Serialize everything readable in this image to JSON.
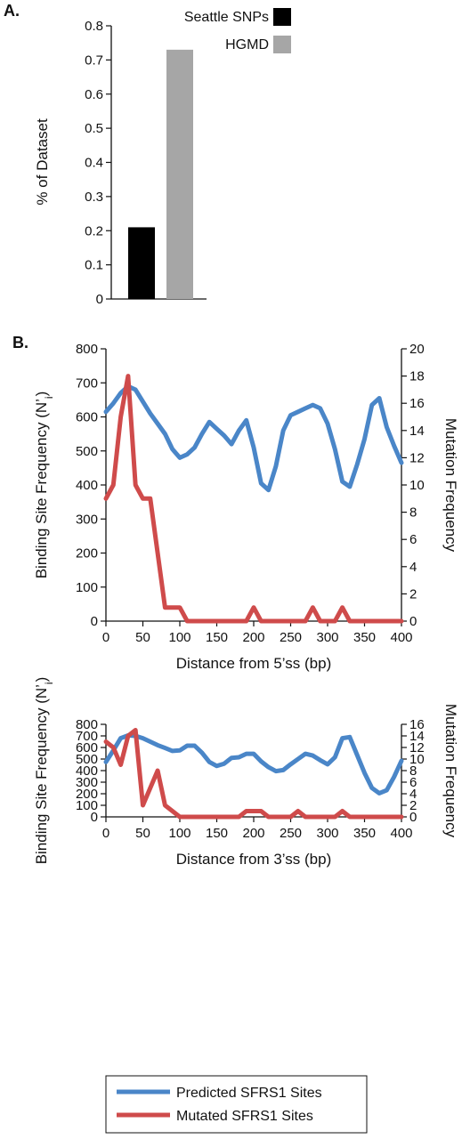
{
  "panel_a_label": "A.",
  "panel_b_label": "B.",
  "chart_data": [
    {
      "type": "bar",
      "categories": [
        "Seattle SNPs",
        "HGMD"
      ],
      "values": [
        0.21,
        0.73
      ],
      "colors": [
        "#000000",
        "#a6a6a6"
      ],
      "legend": [
        "Seattle SNPs",
        "HGMD"
      ],
      "legend_position": "top",
      "ylabel": "% of Dataset",
      "yticks": [
        "0",
        "0.1",
        "0.2",
        "0.3",
        "0.4",
        "0.5",
        "0.6",
        "0.7",
        "0.8"
      ],
      "ylim": [
        0,
        0.8
      ],
      "grid": false
    },
    {
      "type": "line",
      "xlabel": "Distance from 5’ss (bp)",
      "ylabel": "Binding Site Frequency (N’i)",
      "ylabel_main": "Binding Site Frequency (N’",
      "ylabel_sub": "i",
      "ylabel_close": ")",
      "y2label": "Mutation Frequency",
      "xticks": [
        "0",
        "50",
        "100",
        "150",
        "200",
        "250",
        "300",
        "350",
        "400"
      ],
      "yticks": [
        "0",
        "100",
        "200",
        "300",
        "400",
        "500",
        "600",
        "700",
        "800"
      ],
      "y2ticks": [
        "0",
        "2",
        "4",
        "6",
        "8",
        "10",
        "12",
        "14",
        "16",
        "18",
        "20"
      ],
      "xlim": [
        0,
        400
      ],
      "ylim": [
        0,
        800
      ],
      "y2lim": [
        0,
        20
      ],
      "grid": false,
      "series": [
        {
          "name": "Predicted SFRS1 Sites",
          "axis": "left",
          "color": "#4a86c8",
          "x": [
            0,
            10,
            20,
            30,
            40,
            50,
            60,
            70,
            80,
            90,
            100,
            110,
            120,
            130,
            140,
            150,
            160,
            170,
            180,
            190,
            200,
            210,
            220,
            230,
            240,
            250,
            260,
            270,
            280,
            290,
            300,
            310,
            320,
            330,
            340,
            350,
            360,
            370,
            380,
            390,
            400
          ],
          "y": [
            615,
            640,
            670,
            690,
            680,
            645,
            610,
            580,
            550,
            505,
            480,
            490,
            510,
            550,
            585,
            565,
            545,
            520,
            560,
            590,
            510,
            405,
            385,
            455,
            560,
            605,
            615,
            625,
            635,
            625,
            580,
            505,
            410,
            395,
            460,
            535,
            635,
            655,
            570,
            515,
            465
          ]
        },
        {
          "name": "Mutated SFRS1 Sites",
          "axis": "right",
          "color": "#cf4b4b",
          "x": [
            0,
            10,
            20,
            30,
            40,
            50,
            60,
            70,
            80,
            90,
            100,
            110,
            120,
            130,
            140,
            150,
            160,
            170,
            180,
            190,
            200,
            210,
            220,
            230,
            240,
            250,
            260,
            270,
            280,
            290,
            300,
            310,
            320,
            330,
            340,
            350,
            360,
            370,
            380,
            390,
            400
          ],
          "y": [
            9,
            10,
            15,
            18,
            10,
            9,
            9,
            5,
            1,
            1,
            1,
            0,
            0,
            0,
            0,
            0,
            0,
            0,
            0,
            0,
            1,
            0,
            0,
            0,
            0,
            0,
            0,
            0,
            1,
            0,
            0,
            0,
            1,
            0,
            0,
            0,
            0,
            0,
            0,
            0,
            0
          ]
        }
      ]
    },
    {
      "type": "line",
      "xlabel": "Distance from 3’ss (bp)",
      "ylabel": "Binding Site Frequency (N’i)",
      "ylabel_main": "Binding Site Frequency (N’",
      "ylabel_sub": "i",
      "ylabel_close": ")",
      "y2label": "Mutation Frequency",
      "xticks": [
        "0",
        "50",
        "100",
        "150",
        "200",
        "250",
        "300",
        "350",
        "400"
      ],
      "yticks": [
        "0",
        "100",
        "200",
        "300",
        "400",
        "500",
        "600",
        "700",
        "800"
      ],
      "y2ticks": [
        "0",
        "2",
        "4",
        "6",
        "8",
        "10",
        "12",
        "14",
        "16"
      ],
      "xlim": [
        0,
        400
      ],
      "ylim": [
        0,
        800
      ],
      "y2lim": [
        0,
        16
      ],
      "grid": false,
      "series": [
        {
          "name": "Predicted SFRS1 Sites",
          "axis": "left",
          "color": "#4a86c8",
          "x": [
            0,
            10,
            20,
            30,
            40,
            50,
            60,
            70,
            80,
            90,
            100,
            110,
            120,
            130,
            140,
            150,
            160,
            170,
            180,
            190,
            200,
            210,
            220,
            230,
            240,
            250,
            260,
            270,
            280,
            290,
            300,
            310,
            320,
            330,
            340,
            350,
            360,
            370,
            380,
            390,
            400
          ],
          "y": [
            475,
            575,
            680,
            705,
            700,
            680,
            650,
            620,
            595,
            570,
            575,
            615,
            615,
            555,
            475,
            440,
            460,
            510,
            515,
            545,
            545,
            480,
            430,
            395,
            405,
            455,
            500,
            545,
            530,
            490,
            455,
            515,
            680,
            690,
            535,
            380,
            250,
            205,
            230,
            345,
            485
          ]
        },
        {
          "name": "Mutated SFRS1 Sites",
          "axis": "right",
          "color": "#cf4b4b",
          "x": [
            0,
            10,
            20,
            30,
            40,
            50,
            60,
            70,
            80,
            90,
            100,
            110,
            120,
            130,
            140,
            150,
            160,
            170,
            180,
            190,
            200,
            210,
            220,
            230,
            240,
            250,
            260,
            270,
            280,
            290,
            300,
            310,
            320,
            330,
            340,
            350,
            360,
            370,
            380,
            390,
            400
          ],
          "y": [
            13,
            12,
            9,
            14,
            15,
            2,
            5,
            8,
            2,
            1,
            0,
            0,
            0,
            0,
            0,
            0,
            0,
            0,
            0,
            1,
            1,
            1,
            0,
            0,
            0,
            0,
            1,
            0,
            0,
            0,
            0,
            0,
            1,
            0,
            0,
            0,
            0,
            0,
            0,
            0,
            0
          ]
        }
      ]
    }
  ],
  "legend": {
    "items": [
      {
        "label": "Predicted SFRS1 Sites",
        "color": "#4a86c8"
      },
      {
        "label": "Mutated SFRS1 Sites",
        "color": "#cf4b4b"
      }
    ]
  }
}
